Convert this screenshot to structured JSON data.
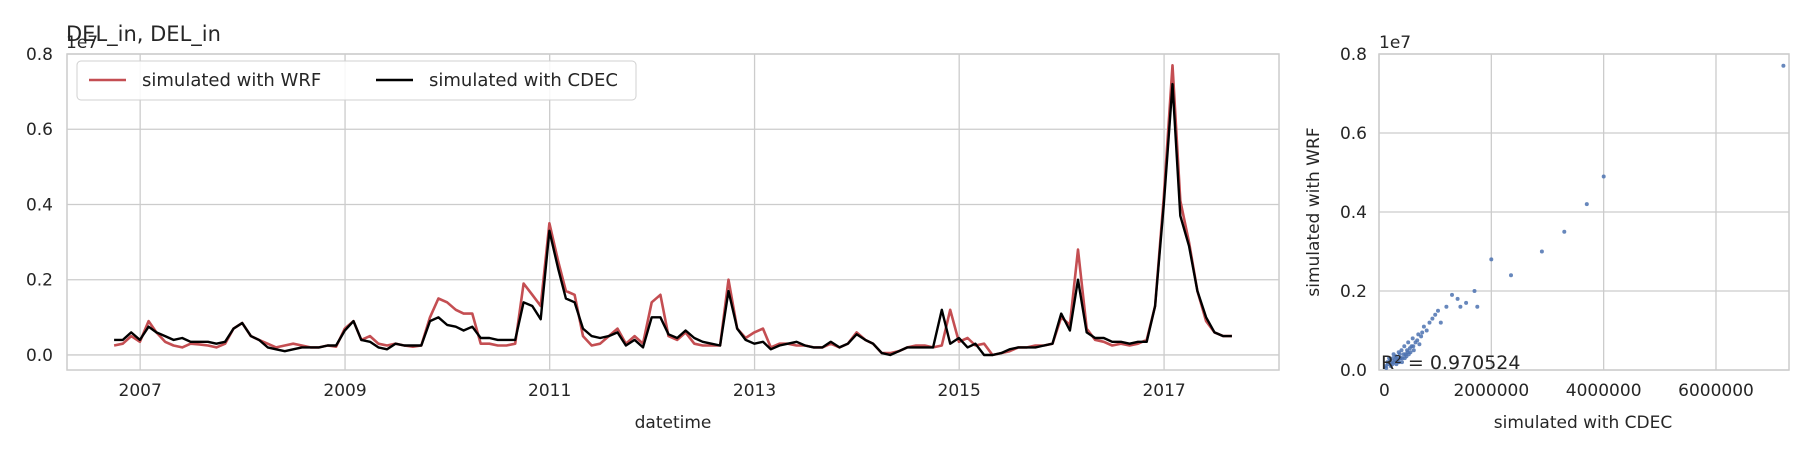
{
  "chart_data": [
    {
      "type": "line",
      "title": "DEL_in, DEL_in",
      "xlabel": "datetime",
      "ylabel": "",
      "y_offset_label": "1e7",
      "ylim": [
        -0.04,
        0.8
      ],
      "y_ticks": [
        0.0,
        0.2,
        0.4,
        0.6,
        0.8
      ],
      "y_tick_labels": [
        "0.0",
        "0.2",
        "0.4",
        "0.6",
        "0.8"
      ],
      "xlim": [
        "2006-04-15",
        "2018-02-15"
      ],
      "x_ticks": [
        "2007-01-01",
        "2009-01-01",
        "2011-01-01",
        "2013-01-01",
        "2015-01-01",
        "2017-01-01"
      ],
      "x_tick_labels": [
        "2007",
        "2009",
        "2011",
        "2013",
        "2015",
        "2017"
      ],
      "grid": true,
      "legend_position": "top-left",
      "x": [
        "2006-09-30",
        "2006-10-31",
        "2006-11-30",
        "2006-12-31",
        "2007-01-31",
        "2007-02-28",
        "2007-03-31",
        "2007-04-30",
        "2007-05-31",
        "2007-06-30",
        "2007-07-31",
        "2007-08-31",
        "2007-09-30",
        "2007-10-31",
        "2007-11-30",
        "2007-12-31",
        "2008-01-31",
        "2008-02-29",
        "2008-03-31",
        "2008-04-30",
        "2008-05-31",
        "2008-06-30",
        "2008-07-31",
        "2008-08-31",
        "2008-09-30",
        "2008-10-31",
        "2008-11-30",
        "2008-12-31",
        "2009-01-31",
        "2009-02-28",
        "2009-03-31",
        "2009-04-30",
        "2009-05-31",
        "2009-06-30",
        "2009-07-31",
        "2009-08-31",
        "2009-09-30",
        "2009-10-31",
        "2009-11-30",
        "2009-12-31",
        "2010-01-31",
        "2010-02-28",
        "2010-03-31",
        "2010-04-30",
        "2010-05-31",
        "2010-06-30",
        "2010-07-31",
        "2010-08-31",
        "2010-09-30",
        "2010-10-31",
        "2010-11-30",
        "2010-12-31",
        "2011-01-31",
        "2011-02-28",
        "2011-03-31",
        "2011-04-30",
        "2011-05-31",
        "2011-06-30",
        "2011-07-31",
        "2011-08-31",
        "2011-09-30",
        "2011-10-31",
        "2011-11-30",
        "2011-12-31",
        "2012-01-31",
        "2012-02-29",
        "2012-03-31",
        "2012-04-30",
        "2012-05-31",
        "2012-06-30",
        "2012-07-31",
        "2012-08-31",
        "2012-09-30",
        "2012-10-31",
        "2012-11-30",
        "2012-12-31",
        "2013-01-31",
        "2013-02-28",
        "2013-03-31",
        "2013-04-30",
        "2013-05-31",
        "2013-06-30",
        "2013-07-31",
        "2013-08-31",
        "2013-09-30",
        "2013-10-31",
        "2013-11-30",
        "2013-12-31",
        "2014-01-31",
        "2014-02-28",
        "2014-03-31",
        "2014-04-30",
        "2014-05-31",
        "2014-06-30",
        "2014-07-31",
        "2014-08-31",
        "2014-09-30",
        "2014-10-31",
        "2014-11-30",
        "2014-12-31",
        "2015-01-31",
        "2015-02-28",
        "2015-03-31",
        "2015-04-30",
        "2015-05-31",
        "2015-06-30",
        "2015-07-31",
        "2015-08-31",
        "2015-09-30",
        "2015-10-31",
        "2015-11-30",
        "2015-12-31",
        "2016-01-31",
        "2016-02-29",
        "2016-03-31",
        "2016-04-30",
        "2016-05-31",
        "2016-06-30",
        "2016-07-31",
        "2016-08-31",
        "2016-09-30",
        "2016-10-31",
        "2016-11-30",
        "2016-12-31",
        "2017-01-31",
        "2017-02-28",
        "2017-03-31",
        "2017-04-30",
        "2017-05-31",
        "2017-06-30",
        "2017-07-31",
        "2017-08-31"
      ],
      "series": [
        {
          "name": "simulated with WRF",
          "color": "#c44e52",
          "values": [
            0.025,
            0.03,
            0.05,
            0.035,
            0.09,
            0.06,
            0.035,
            0.025,
            0.02,
            0.03,
            0.028,
            0.025,
            0.02,
            0.03,
            0.07,
            0.085,
            0.05,
            0.04,
            0.03,
            0.02,
            0.025,
            0.03,
            0.025,
            0.02,
            0.02,
            0.025,
            0.022,
            0.07,
            0.09,
            0.04,
            0.05,
            0.03,
            0.025,
            0.03,
            0.025,
            0.022,
            0.025,
            0.1,
            0.15,
            0.14,
            0.12,
            0.11,
            0.11,
            0.03,
            0.03,
            0.025,
            0.025,
            0.03,
            0.19,
            0.16,
            0.13,
            0.35,
            0.25,
            0.17,
            0.16,
            0.05,
            0.025,
            0.03,
            0.05,
            0.07,
            0.03,
            0.05,
            0.03,
            0.14,
            0.16,
            0.05,
            0.04,
            0.06,
            0.03,
            0.025,
            0.025,
            0.025,
            0.2,
            0.07,
            0.045,
            0.06,
            0.07,
            0.02,
            0.03,
            0.03,
            0.025,
            0.025,
            0.02,
            0.02,
            0.03,
            0.02,
            0.03,
            0.06,
            0.04,
            0.03,
            0.005,
            0.005,
            0.01,
            0.02,
            0.025,
            0.025,
            0.02,
            0.025,
            0.12,
            0.035,
            0.045,
            0.025,
            0.03,
            0.0,
            0.005,
            0.01,
            0.02,
            0.02,
            0.025,
            0.025,
            0.03,
            0.1,
            0.08,
            0.28,
            0.07,
            0.04,
            0.035,
            0.025,
            0.03,
            0.025,
            0.03,
            0.04,
            0.13,
            0.42,
            0.77,
            0.41,
            0.3,
            0.17,
            0.09,
            0.06,
            0.05,
            0.05
          ]
        },
        {
          "name": "simulated with CDEC",
          "color": "#000000",
          "values": [
            0.04,
            0.04,
            0.06,
            0.04,
            0.075,
            0.06,
            0.05,
            0.04,
            0.045,
            0.035,
            0.035,
            0.035,
            0.03,
            0.035,
            0.07,
            0.085,
            0.05,
            0.04,
            0.02,
            0.015,
            0.01,
            0.015,
            0.02,
            0.02,
            0.02,
            0.025,
            0.025,
            0.065,
            0.09,
            0.04,
            0.035,
            0.02,
            0.015,
            0.03,
            0.025,
            0.025,
            0.025,
            0.09,
            0.1,
            0.08,
            0.075,
            0.065,
            0.075,
            0.045,
            0.045,
            0.04,
            0.04,
            0.04,
            0.14,
            0.13,
            0.095,
            0.33,
            0.23,
            0.15,
            0.14,
            0.07,
            0.05,
            0.045,
            0.05,
            0.06,
            0.025,
            0.04,
            0.02,
            0.1,
            0.1,
            0.055,
            0.045,
            0.065,
            0.045,
            0.035,
            0.03,
            0.025,
            0.17,
            0.07,
            0.04,
            0.03,
            0.035,
            0.015,
            0.025,
            0.03,
            0.035,
            0.025,
            0.02,
            0.02,
            0.035,
            0.02,
            0.03,
            0.055,
            0.04,
            0.03,
            0.005,
            0.0,
            0.01,
            0.02,
            0.02,
            0.02,
            0.02,
            0.12,
            0.03,
            0.045,
            0.02,
            0.03,
            0.0,
            0.0,
            0.005,
            0.015,
            0.02,
            0.02,
            0.02,
            0.025,
            0.03,
            0.11,
            0.065,
            0.2,
            0.06,
            0.045,
            0.045,
            0.035,
            0.035,
            0.03,
            0.035,
            0.035,
            0.13,
            0.4,
            0.72,
            0.37,
            0.29,
            0.17,
            0.1,
            0.06,
            0.05,
            0.05
          ]
        }
      ]
    },
    {
      "type": "scatter",
      "title": "",
      "xlabel": "simulated with CDEC",
      "ylabel": "simulated with WRF",
      "y_offset_label": "1e7",
      "xlim": [
        0,
        7300000
      ],
      "ylim": [
        0,
        0.8
      ],
      "x_ticks": [
        0,
        2000000,
        4000000,
        6000000
      ],
      "x_tick_labels": [
        "0",
        "2000000",
        "4000000",
        "6000000"
      ],
      "y_ticks": [
        0.0,
        0.2,
        0.4,
        0.6,
        0.8
      ],
      "y_tick_labels": [
        "0.0",
        "0.2",
        "0.4",
        "0.6",
        "0.8"
      ],
      "grid": true,
      "color": "#4c72b0",
      "annotation": "R² = 0.970524",
      "points": [
        [
          150000,
          0.02
        ],
        [
          180000,
          0.03
        ],
        [
          200000,
          0.025
        ],
        [
          220000,
          0.02
        ],
        [
          250000,
          0.03
        ],
        [
          260000,
          0.04
        ],
        [
          280000,
          0.025
        ],
        [
          300000,
          0.035
        ],
        [
          320000,
          0.03
        ],
        [
          340000,
          0.02
        ],
        [
          350000,
          0.045
        ],
        [
          370000,
          0.04
        ],
        [
          380000,
          0.03
        ],
        [
          400000,
          0.05
        ],
        [
          420000,
          0.03
        ],
        [
          450000,
          0.06
        ],
        [
          470000,
          0.04
        ],
        [
          500000,
          0.05
        ],
        [
          520000,
          0.07
        ],
        [
          550000,
          0.055
        ],
        [
          580000,
          0.06
        ],
        [
          600000,
          0.08
        ],
        [
          620000,
          0.05
        ],
        [
          650000,
          0.07
        ],
        [
          700000,
          0.09
        ],
        [
          720000,
          0.065
        ],
        [
          750000,
          0.085
        ],
        [
          800000,
          0.11
        ],
        [
          850000,
          0.1
        ],
        [
          900000,
          0.12
        ],
        [
          950000,
          0.13
        ],
        [
          1000000,
          0.14
        ],
        [
          1050000,
          0.15
        ],
        [
          1100000,
          0.12
        ],
        [
          1200000,
          0.16
        ],
        [
          1300000,
          0.19
        ],
        [
          1400000,
          0.18
        ],
        [
          1450000,
          0.16
        ],
        [
          1550000,
          0.17
        ],
        [
          1700000,
          0.2
        ],
        [
          1750000,
          0.16
        ],
        [
          2000000,
          0.28
        ],
        [
          2350000,
          0.24
        ],
        [
          2900000,
          0.3
        ],
        [
          3300000,
          0.35
        ],
        [
          3700000,
          0.42
        ],
        [
          4000000,
          0.49
        ],
        [
          7200000,
          0.77
        ],
        [
          120000,
          0.01
        ],
        [
          130000,
          0.005
        ],
        [
          160000,
          0.015
        ],
        [
          210000,
          0.01
        ],
        [
          240000,
          0.015
        ],
        [
          270000,
          0.02
        ],
        [
          310000,
          0.015
        ],
        [
          330000,
          0.025
        ],
        [
          360000,
          0.02
        ],
        [
          390000,
          0.03
        ],
        [
          410000,
          0.02
        ],
        [
          440000,
          0.04
        ],
        [
          460000,
          0.03
        ],
        [
          490000,
          0.035
        ],
        [
          510000,
          0.045
        ],
        [
          530000,
          0.04
        ],
        [
          560000,
          0.045
        ],
        [
          610000,
          0.06
        ],
        [
          680000,
          0.075
        ],
        [
          770000,
          0.095
        ]
      ]
    }
  ]
}
